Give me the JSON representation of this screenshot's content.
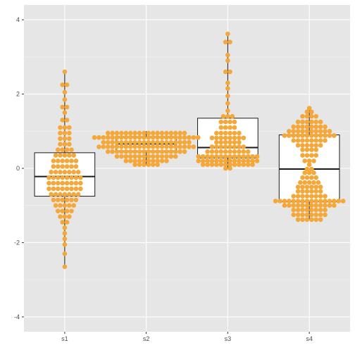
{
  "chart_data": {
    "type": "boxplot-dotplot",
    "title": "",
    "xlabel": "",
    "ylabel": "",
    "ylim": [
      -4.4,
      4.4
    ],
    "y_ticks": [
      "-4",
      "-2",
      "0",
      "2",
      "4"
    ],
    "y_tick_values": [
      -4,
      -2,
      0,
      2,
      4
    ],
    "categories": [
      "s1",
      "s2",
      "s3",
      "s4"
    ],
    "grid": true,
    "colors": {
      "panel": "#e6e6e6",
      "grid_major": "#ffffff",
      "grid_minor": "#f2f2f2",
      "dot": "#f4a83a",
      "box_fill": "#ffffff",
      "box_stroke": "#1a1a1a"
    },
    "boxes": [
      {
        "name": "s1",
        "q1": -0.75,
        "median": -0.22,
        "q3": 0.42,
        "whisker_low": -2.68,
        "whisker_high": 2.62
      },
      {
        "name": "s2",
        "q1": 0.47,
        "median": 0.66,
        "q3": 0.85,
        "whisker_low": 0.08,
        "whisker_high": 1.0
      },
      {
        "name": "s3",
        "q1": 0.28,
        "median": 0.56,
        "q3": 1.35,
        "whisker_low": -0.02,
        "whisker_high": 3.62
      },
      {
        "name": "s4",
        "q1": -0.9,
        "median": -0.02,
        "q3": 0.9,
        "whisker_low": -1.38,
        "whisker_high": 1.62
      }
    ],
    "dot_bins": [
      {
        "name": "s1",
        "bins": [
          [
            -2.65,
            1
          ],
          [
            -2.3,
            1
          ],
          [
            -2.05,
            1
          ],
          [
            -1.9,
            1
          ],
          [
            -1.75,
            1
          ],
          [
            -1.6,
            1
          ],
          [
            -1.45,
            2
          ],
          [
            -1.3,
            3
          ],
          [
            -1.15,
            4
          ],
          [
            -1.0,
            5
          ],
          [
            -0.85,
            6
          ],
          [
            -0.7,
            7
          ],
          [
            -0.55,
            8
          ],
          [
            -0.4,
            8
          ],
          [
            -0.25,
            8
          ],
          [
            -0.1,
            7
          ],
          [
            0.05,
            6
          ],
          [
            0.2,
            6
          ],
          [
            0.35,
            5
          ],
          [
            0.5,
            4
          ],
          [
            0.65,
            3
          ],
          [
            0.8,
            3
          ],
          [
            0.95,
            3
          ],
          [
            1.1,
            3
          ],
          [
            1.3,
            2
          ],
          [
            1.5,
            1
          ],
          [
            1.65,
            2
          ],
          [
            1.85,
            1
          ],
          [
            2.05,
            1
          ],
          [
            2.25,
            2
          ],
          [
            2.6,
            1
          ]
        ]
      },
      {
        "name": "s2",
        "bins": [
          [
            0.1,
            6
          ],
          [
            0.2,
            10
          ],
          [
            0.32,
            14
          ],
          [
            0.45,
            18
          ],
          [
            0.58,
            22
          ],
          [
            0.7,
            20
          ],
          [
            0.83,
            24
          ],
          [
            0.95,
            18
          ]
        ]
      },
      {
        "name": "s3",
        "bins": [
          [
            0.0,
            2
          ],
          [
            0.1,
            12
          ],
          [
            0.2,
            14
          ],
          [
            0.32,
            14
          ],
          [
            0.45,
            10
          ],
          [
            0.58,
            8
          ],
          [
            0.7,
            6
          ],
          [
            0.82,
            8
          ],
          [
            0.95,
            6
          ],
          [
            1.1,
            4
          ],
          [
            1.25,
            4
          ],
          [
            1.4,
            3
          ],
          [
            1.55,
            1
          ],
          [
            1.75,
            1
          ],
          [
            1.95,
            1
          ],
          [
            2.15,
            1
          ],
          [
            2.3,
            1
          ],
          [
            2.6,
            2
          ],
          [
            2.9,
            1
          ],
          [
            3.05,
            1
          ],
          [
            3.4,
            2
          ],
          [
            3.62,
            1
          ]
        ]
      },
      {
        "name": "s4",
        "bins": [
          [
            -1.38,
            6
          ],
          [
            -1.25,
            8
          ],
          [
            -1.12,
            8
          ],
          [
            -1.0,
            12
          ],
          [
            -0.88,
            16
          ],
          [
            -0.75,
            8
          ],
          [
            -0.62,
            6
          ],
          [
            -0.5,
            6
          ],
          [
            -0.38,
            5
          ],
          [
            -0.25,
            4
          ],
          [
            -0.12,
            3
          ],
          [
            -0.02,
            2
          ],
          [
            0.1,
            1
          ],
          [
            0.2,
            3
          ],
          [
            0.35,
            4
          ],
          [
            0.5,
            4
          ],
          [
            0.62,
            6
          ],
          [
            0.75,
            8
          ],
          [
            0.88,
            12
          ],
          [
            1.0,
            10
          ],
          [
            1.12,
            8
          ],
          [
            1.25,
            6
          ],
          [
            1.4,
            4
          ],
          [
            1.52,
            2
          ],
          [
            1.62,
            1
          ]
        ]
      }
    ]
  }
}
